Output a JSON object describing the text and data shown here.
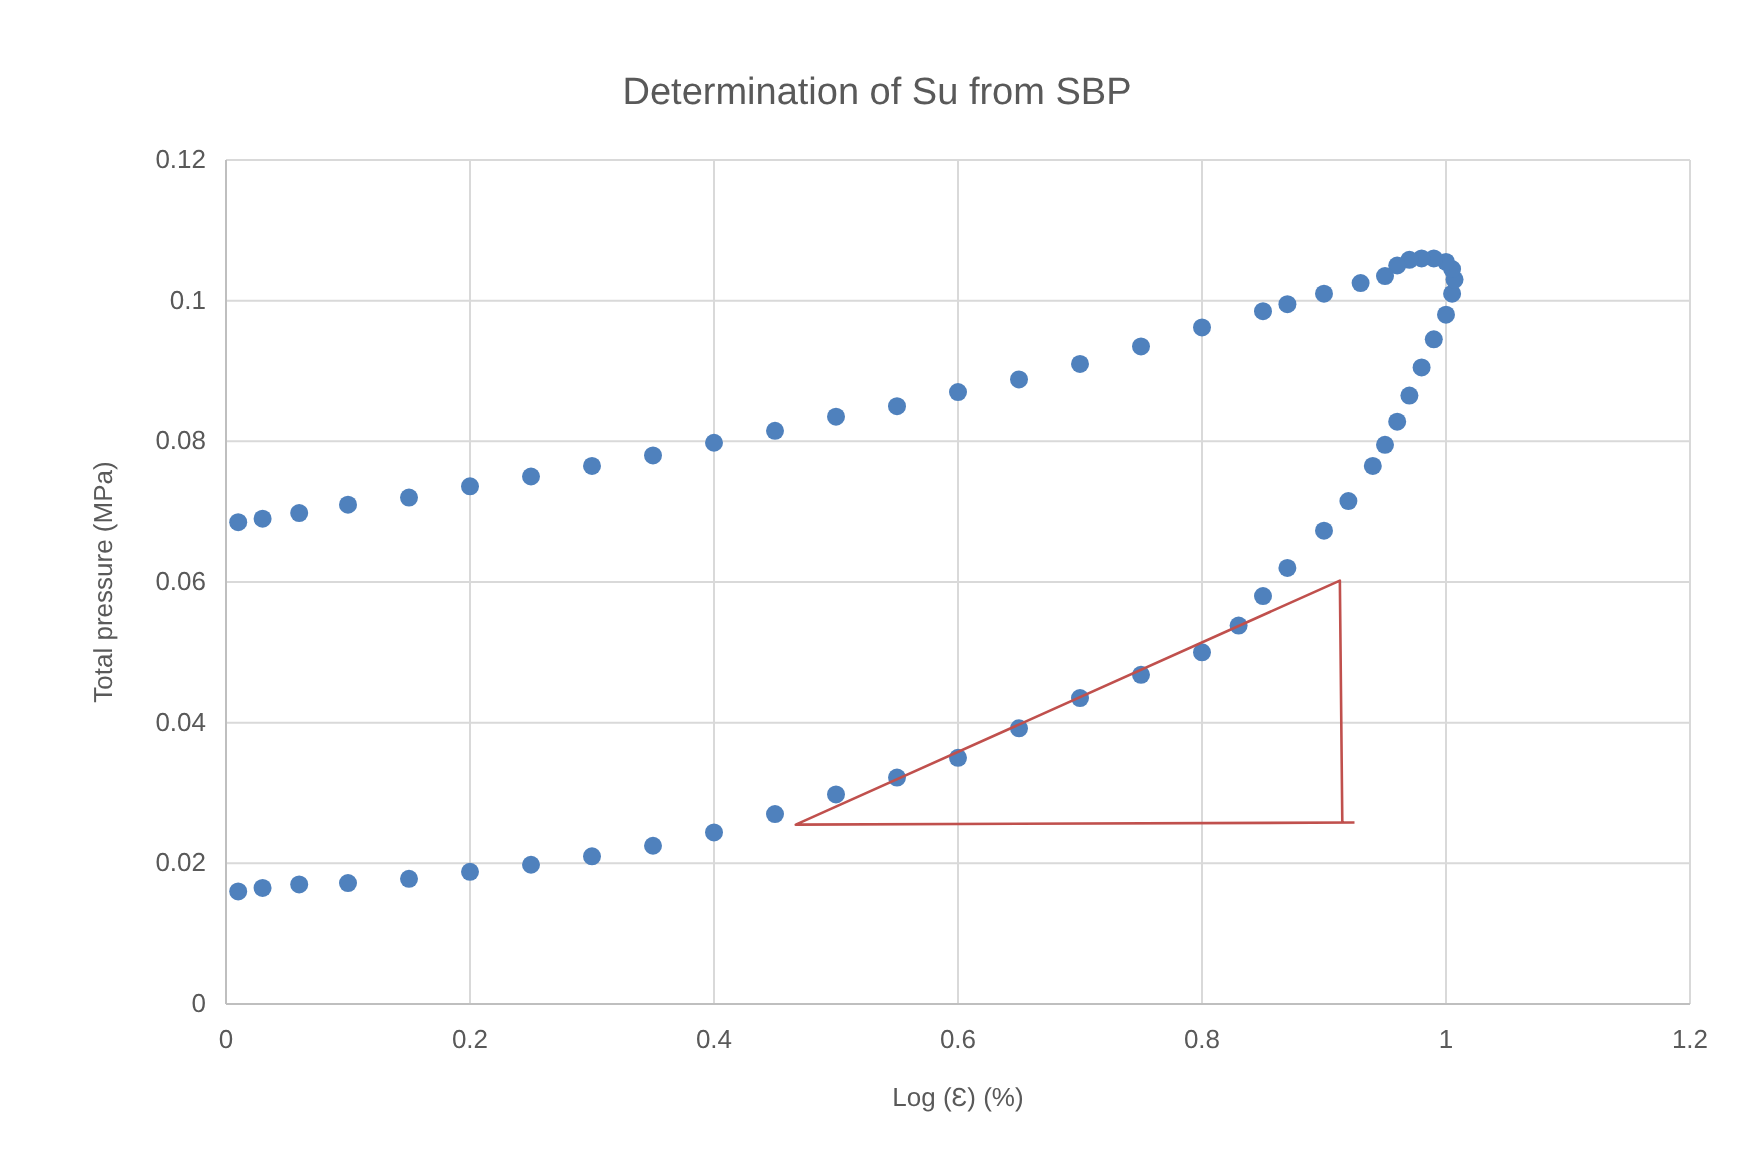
{
  "chart_data": {
    "type": "scatter",
    "title": "Determination of Su from SBP",
    "xlabel": "Log (Ɛ) (%)",
    "ylabel": "Total pressure (MPa)",
    "xlim": [
      0,
      1.2
    ],
    "ylim": [
      0,
      0.12
    ],
    "xticks": [
      0,
      0.2,
      0.4,
      0.6,
      0.8,
      1,
      1.2
    ],
    "yticks": [
      0,
      0.02,
      0.04,
      0.06,
      0.08,
      0.1,
      0.12
    ],
    "grid": true,
    "series": [
      {
        "marker": "circle",
        "color": "#4f81bd",
        "x": [
          0.01,
          0.03,
          0.06,
          0.1,
          0.15,
          0.2,
          0.25,
          0.3,
          0.35,
          0.4,
          0.45,
          0.5,
          0.55,
          0.6,
          0.65,
          0.7,
          0.75,
          0.8,
          0.83,
          0.85,
          0.87,
          0.9,
          0.92,
          0.94,
          0.95,
          0.96,
          0.97,
          0.98,
          0.99,
          1.0,
          1.005,
          1.007,
          1.005,
          1.0,
          0.99,
          0.98,
          0.97,
          0.96,
          0.95,
          0.93,
          0.9,
          0.87,
          0.85,
          0.8,
          0.75,
          0.7,
          0.65,
          0.6,
          0.55,
          0.5,
          0.45,
          0.4,
          0.35,
          0.3,
          0.25,
          0.2,
          0.15,
          0.1,
          0.06,
          0.03,
          0.01
        ],
        "values": [
          0.016,
          0.0165,
          0.017,
          0.0172,
          0.0178,
          0.0188,
          0.0198,
          0.021,
          0.0225,
          0.0244,
          0.027,
          0.0298,
          0.0322,
          0.035,
          0.0392,
          0.0435,
          0.0468,
          0.05,
          0.0538,
          0.058,
          0.062,
          0.0673,
          0.0715,
          0.0765,
          0.0795,
          0.0828,
          0.0865,
          0.0905,
          0.0945,
          0.098,
          0.101,
          0.103,
          0.1045,
          0.1055,
          0.106,
          0.106,
          0.1058,
          0.105,
          0.1035,
          0.1025,
          0.101,
          0.0995,
          0.0985,
          0.0962,
          0.0935,
          0.091,
          0.0888,
          0.087,
          0.085,
          0.0835,
          0.0815,
          0.0798,
          0.078,
          0.0765,
          0.075,
          0.0736,
          0.072,
          0.071,
          0.0698,
          0.069,
          0.0685
        ]
      },
      {
        "type": "line",
        "marker": "none",
        "line_style": "solid",
        "color": "#c0504d",
        "x": [
          0.925,
          0.467,
          0.913,
          0.915
        ],
        "values": [
          0.0258,
          0.0255,
          0.0602,
          0.0258
        ]
      }
    ]
  }
}
